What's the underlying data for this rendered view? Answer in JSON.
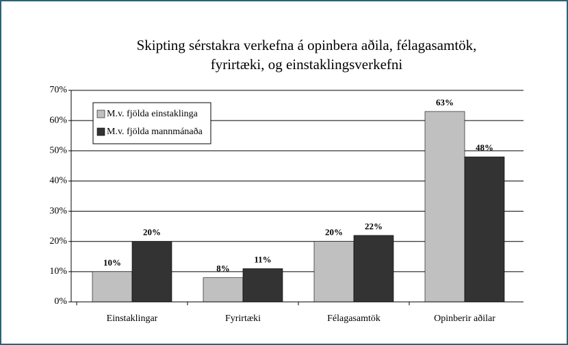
{
  "chart_data": {
    "type": "bar",
    "title": [
      "Skipting sérstakra verkefna á opinbera aðila, félagasamtök,",
      "fyrirtæki, og einstaklingsverkefni"
    ],
    "categories": [
      "Einstaklingar",
      "Fyrirtæki",
      "Félagasamtök",
      "Opinberir aðilar"
    ],
    "series": [
      {
        "name": "M.v. fjölda einstaklinga",
        "color": "#c0c0c0",
        "values": [
          10,
          8,
          20,
          63
        ],
        "value_labels": [
          "10%",
          "8%",
          "20%",
          "63%"
        ]
      },
      {
        "name": "M.v. fjölda mannmánaða",
        "color": "#333333",
        "values": [
          20,
          11,
          22,
          48
        ],
        "value_labels": [
          "20%",
          "11%",
          "22%",
          "48%"
        ]
      }
    ],
    "ylim": [
      0,
      70
    ],
    "yticks": [
      {
        "value": 0,
        "label": "0%"
      },
      {
        "value": 10,
        "label": "10%"
      },
      {
        "value": 20,
        "label": "20%"
      },
      {
        "value": 30,
        "label": "30%"
      },
      {
        "value": 40,
        "label": "40%"
      },
      {
        "value": 50,
        "label": "50%"
      },
      {
        "value": 60,
        "label": "60%"
      },
      {
        "value": 70,
        "label": "70%"
      }
    ],
    "grid": true,
    "legend": "upper-left"
  }
}
